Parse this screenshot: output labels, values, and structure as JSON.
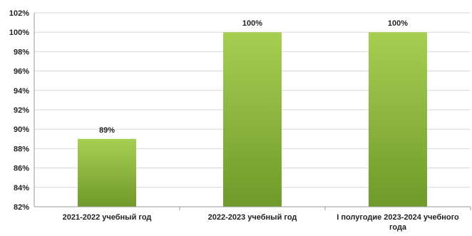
{
  "chart_data": {
    "type": "bar",
    "title": "",
    "xlabel": "",
    "ylabel": "",
    "ylim": [
      82,
      102
    ],
    "ytick_step": 2,
    "ytick_suffix": "%",
    "grid": true,
    "categories": [
      [
        "2021-2022 учебный год"
      ],
      [
        "2022-2023 учебный год"
      ],
      [
        "I полугодие 2023-2024 учебного",
        "года"
      ]
    ],
    "values": [
      89,
      100,
      100
    ],
    "data_labels": [
      "89%",
      "100%",
      "100%"
    ],
    "colors": {
      "bar_top": "#a6cf52",
      "bar_bottom": "#6f9a2a",
      "grid": "#d9d9d9",
      "axis": "#9a9a9a"
    }
  }
}
